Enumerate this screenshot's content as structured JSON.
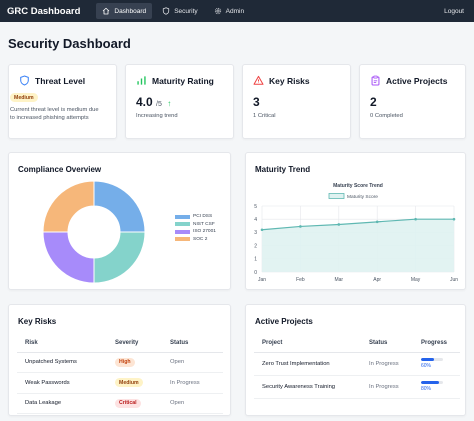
{
  "navbar": {
    "brand": "GRC Dashboard",
    "items": [
      {
        "label": "Dashboard",
        "icon": "home-icon",
        "active": true
      },
      {
        "label": "Security",
        "icon": "shield-icon",
        "active": false
      },
      {
        "label": "Admin",
        "icon": "gear-icon",
        "active": false
      }
    ],
    "logout": "Logout"
  },
  "page_title": "Security Dashboard",
  "stats": {
    "threat": {
      "title": "Threat Level",
      "badge": "Medium",
      "description": "Current threat level is medium due to increased phishing attempts"
    },
    "maturity": {
      "title": "Maturity Rating",
      "value": "4.0",
      "sub": "/5",
      "arrow": "↑",
      "caption": "Increasing trend"
    },
    "risks": {
      "title": "Key Risks",
      "value": "3",
      "caption": "1 Critical"
    },
    "projects": {
      "title": "Active Projects",
      "value": "2",
      "caption": "0 Completed"
    }
  },
  "compliance": {
    "title": "Compliance Overview",
    "colors": [
      "#75aee9",
      "#84d3cb",
      "#a78bfa",
      "#f6b77a"
    ],
    "chart_data": {
      "type": "pie",
      "categories": [
        "PCI DSS",
        "NIST CSF",
        "ISO 27001",
        "SOC 2"
      ],
      "values": [
        25,
        25,
        25,
        25
      ]
    }
  },
  "maturity_trend": {
    "title": "Maturity Trend",
    "chart_data": {
      "type": "area",
      "title": "Maturity Score Trend",
      "x": [
        "Jan",
        "Feb",
        "Mar",
        "Apr",
        "May",
        "Jun"
      ],
      "series": [
        {
          "name": "Maturity Score",
          "values": [
            3.2,
            3.45,
            3.6,
            3.8,
            4.0,
            4.0
          ]
        }
      ],
      "ylim": [
        0,
        5
      ],
      "yticks": [
        "0",
        "1",
        "2",
        "3",
        "4",
        "5"
      ],
      "grid": true,
      "legend": "top"
    }
  },
  "key_risks": {
    "title": "Key Risks",
    "columns": [
      "Risk",
      "Severity",
      "Status"
    ],
    "rows": [
      {
        "risk": "Unpatched Systems",
        "severity": "High",
        "status": "Open"
      },
      {
        "risk": "Weak Passwords",
        "severity": "Medium",
        "status": "In Progress"
      },
      {
        "risk": "Data Leakage",
        "severity": "Critical",
        "status": "Open"
      }
    ]
  },
  "active_projects": {
    "title": "Active Projects",
    "columns": [
      "Project",
      "Status",
      "Progress"
    ],
    "rows": [
      {
        "project": "Zero Trust Implementation",
        "status": "In Progress",
        "progress_pct": "60%",
        "progress": 0.6
      },
      {
        "project": "Security Awareness Training",
        "status": "In Progress",
        "progress_pct": "80%",
        "progress": 0.8
      }
    ]
  }
}
